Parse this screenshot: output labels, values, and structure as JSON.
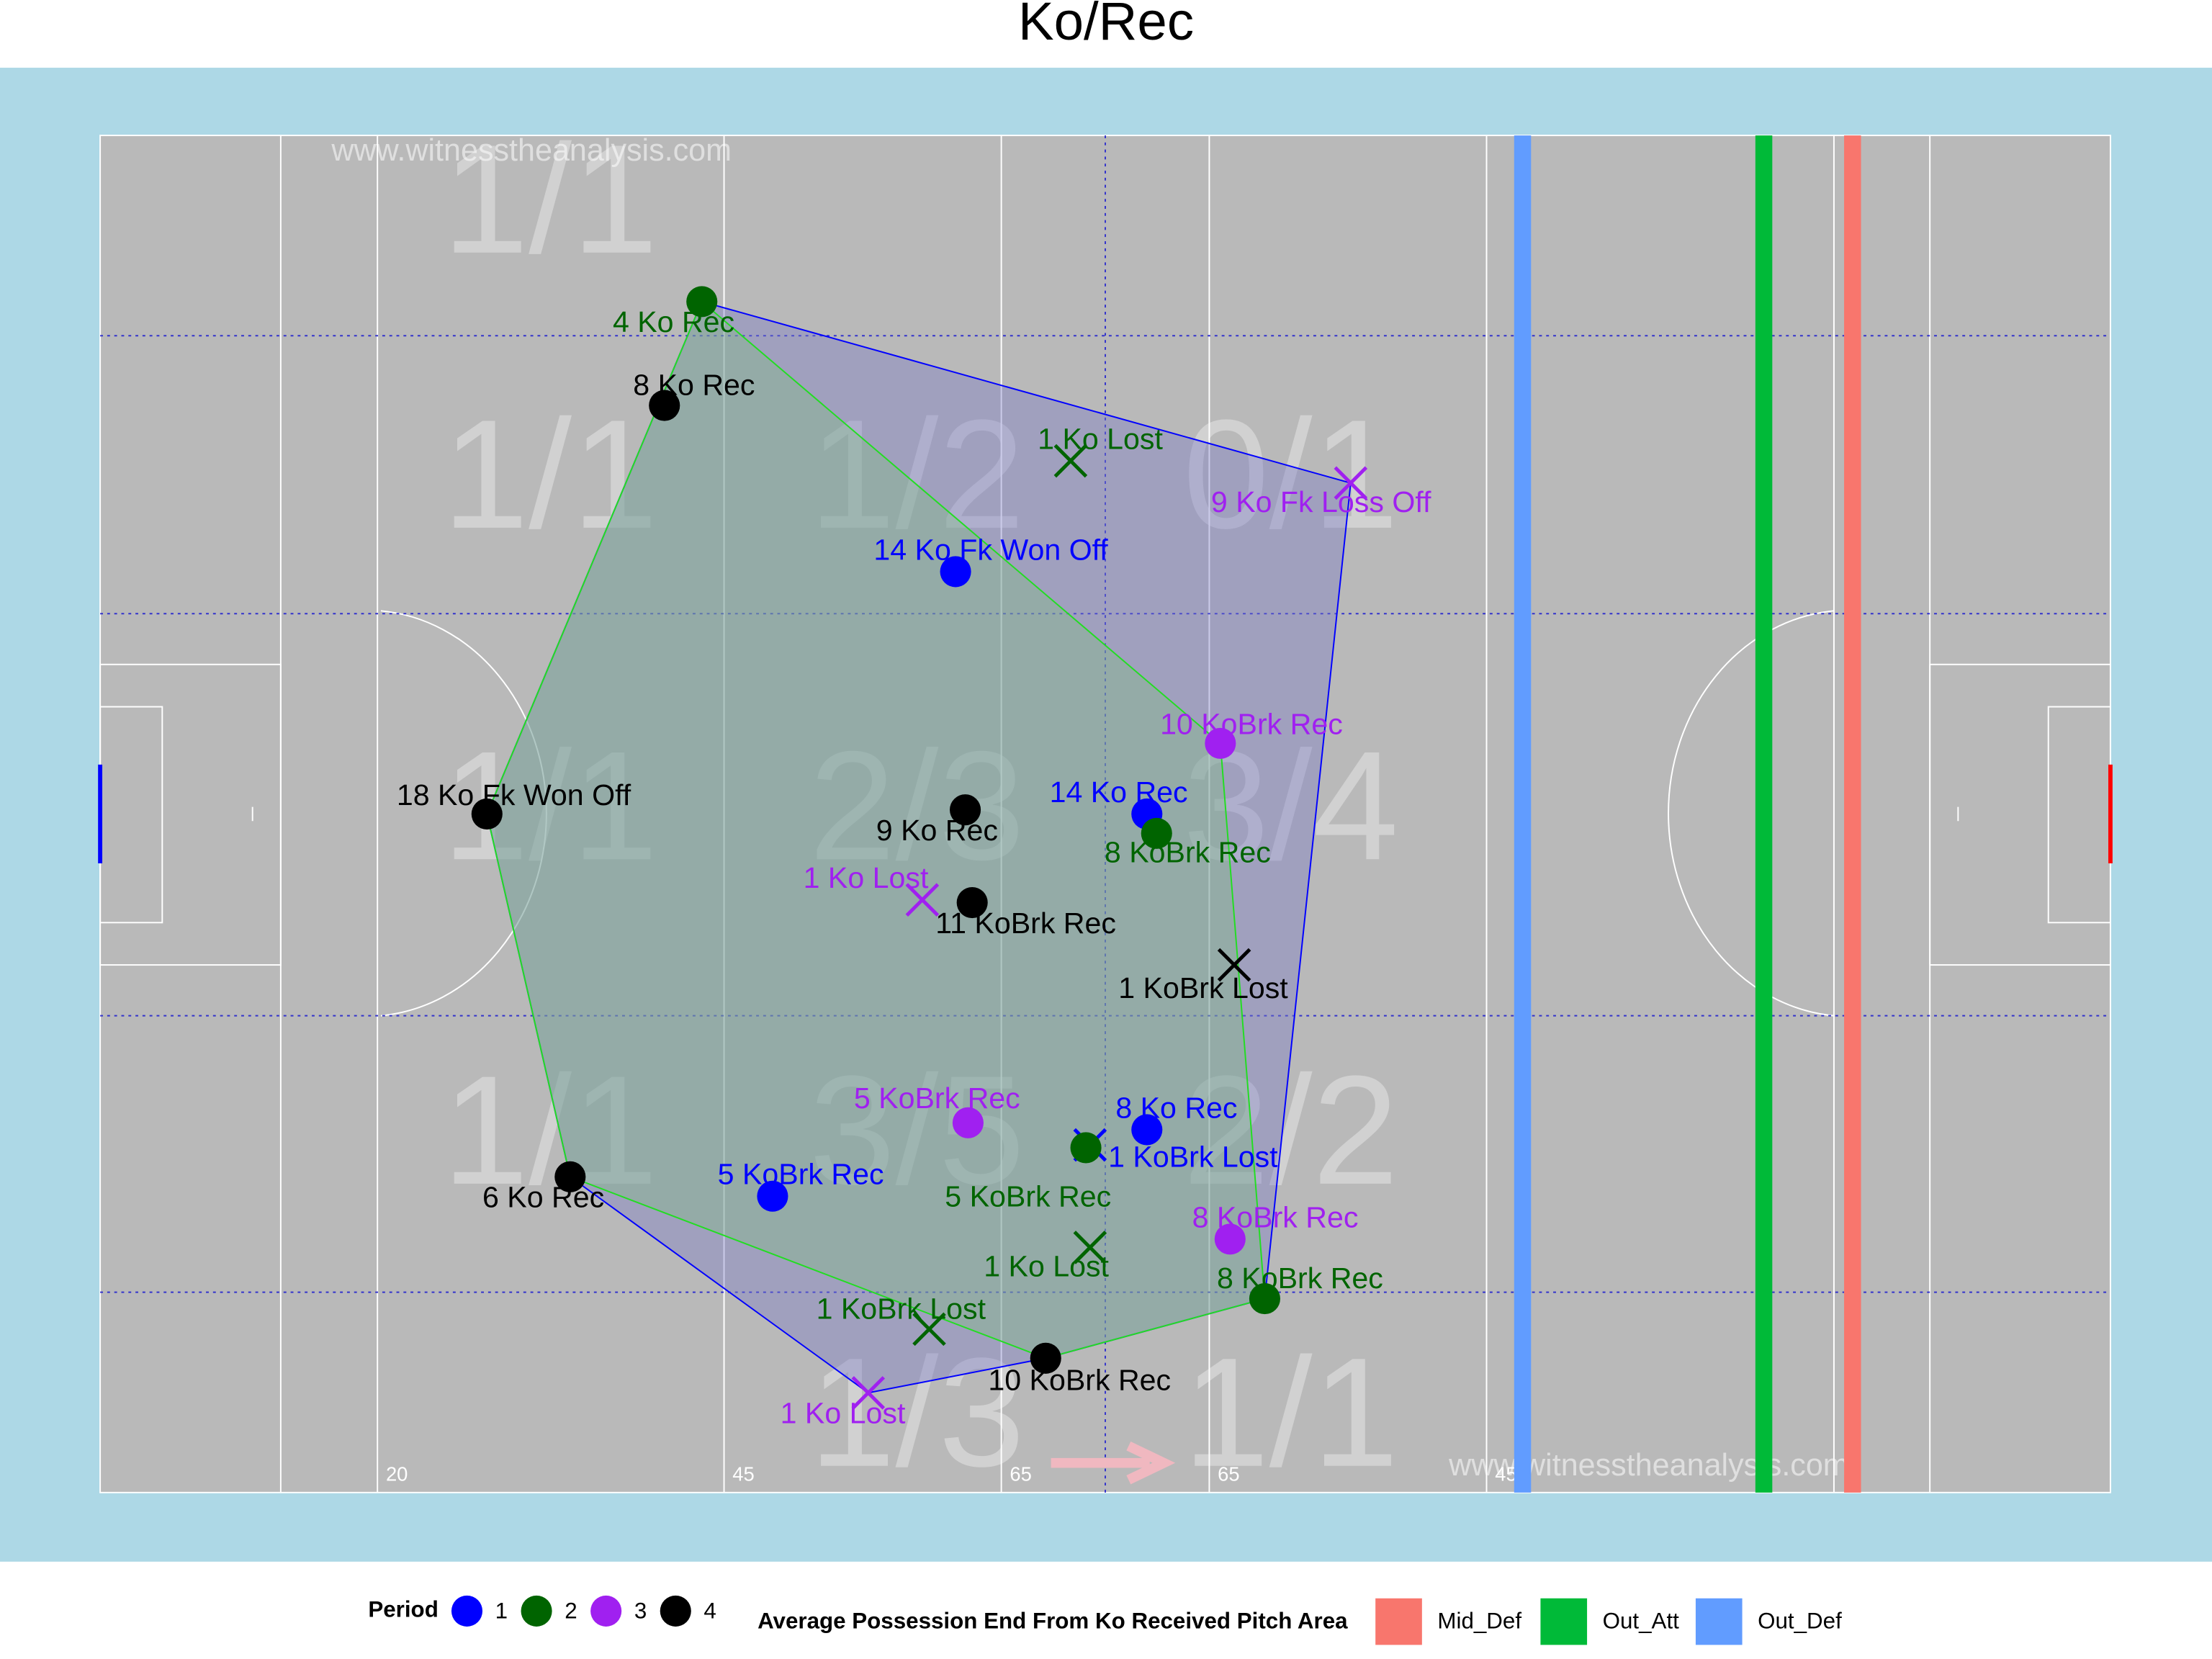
{
  "chart_data": {
    "type": "scatter",
    "title": "Ko/Rec",
    "watermark": "www.witnesstheanalysis.com",
    "xlim": [
      0,
      145
    ],
    "ylim": [
      0,
      98
    ],
    "pitch_markings": [
      20,
      45,
      65,
      65,
      45
    ],
    "zones": [
      [
        "1/1",
        null,
        null
      ],
      [
        "1/1",
        "1/2",
        "0/1"
      ],
      [
        "1/1",
        "2/3",
        "3/4"
      ],
      [
        "1/1",
        "3/5",
        "2/2"
      ],
      [
        null,
        "1/3",
        "1/1"
      ]
    ],
    "legend_title": "Period",
    "periods": [
      1,
      2,
      3,
      4
    ],
    "period_colors": [
      "#0000ff",
      "#006400",
      "#a020f0",
      "#000000"
    ],
    "points": [
      {
        "label": "4 Ko Rec",
        "period": 2,
        "marker": "circle",
        "x": 43.4,
        "y": 86.0
      },
      {
        "label": "8 Ko Rec",
        "period": 4,
        "marker": "circle",
        "x": 40.7,
        "y": 78.5
      },
      {
        "label": "1 Ko Lost",
        "period": 2,
        "marker": "x",
        "x": 70.0,
        "y": 74.5
      },
      {
        "label": "9 Ko Fk Loss Off",
        "period": 3,
        "marker": "x",
        "x": 90.2,
        "y": 72.9
      },
      {
        "label": "14 Ko Fk Won Off",
        "period": 1,
        "marker": "circle",
        "x": 61.7,
        "y": 66.5
      },
      {
        "label": "10 KoBrk Rec",
        "period": 3,
        "marker": "circle",
        "x": 80.8,
        "y": 54.1
      },
      {
        "label": "18 Ko Fk Won Off",
        "period": 4,
        "marker": "circle",
        "x": 27.9,
        "y": 49.0
      },
      {
        "label": "9 Ko Rec",
        "period": 4,
        "marker": "circle",
        "x": 62.4,
        "y": 49.3
      },
      {
        "label": "14 Ko Rec",
        "period": 1,
        "marker": "circle",
        "x": 75.5,
        "y": 49.0
      },
      {
        "label": "8 KoBrk Rec",
        "period": 2,
        "marker": "circle",
        "x": 76.2,
        "y": 47.6
      },
      {
        "label": "1 Ko Lost",
        "period": 3,
        "marker": "x",
        "x": 59.3,
        "y": 42.8
      },
      {
        "label": "11 KoBrk Rec",
        "period": 4,
        "marker": "circle",
        "x": 62.9,
        "y": 42.6
      },
      {
        "label": "1 KoBrk Lost",
        "period": 4,
        "marker": "x",
        "x": 81.8,
        "y": 38.1
      },
      {
        "label": "5 KoBrk Rec",
        "period": 3,
        "marker": "circle",
        "x": 62.6,
        "y": 26.7
      },
      {
        "label": "8 Ko Rec",
        "period": 1,
        "marker": "circle",
        "x": 75.5,
        "y": 26.2
      },
      {
        "label": "1 KoBrk Lost",
        "period": 1,
        "marker": "x",
        "x": 71.4,
        "y": 25.1
      },
      {
        "label": "5 KoBrk Rec",
        "period": 2,
        "marker": "circle",
        "x": 71.1,
        "y": 24.9
      },
      {
        "label": "6 Ko Rec",
        "period": 4,
        "marker": "circle",
        "x": 33.9,
        "y": 22.8
      },
      {
        "label": "5 KoBrk Rec",
        "period": 1,
        "marker": "circle",
        "x": 48.5,
        "y": 21.4
      },
      {
        "label": "8 KoBrk Rec",
        "period": 3,
        "marker": "circle",
        "x": 81.5,
        "y": 18.3
      },
      {
        "label": "1 Ko Lost",
        "period": 2,
        "marker": "x",
        "x": 71.4,
        "y": 17.7
      },
      {
        "label": "8 KoBrk Rec",
        "period": 2,
        "marker": "circle",
        "x": 84.0,
        "y": 14.0
      },
      {
        "label": "1 KoBrk Lost",
        "period": 2,
        "marker": "x",
        "x": 59.8,
        "y": 11.8
      },
      {
        "label": "10 KoBrk Rec",
        "period": 4,
        "marker": "circle",
        "x": 68.2,
        "y": 9.7
      },
      {
        "label": "1 Ko Lost",
        "period": 3,
        "marker": "x",
        "x": 55.4,
        "y": 7.2
      }
    ],
    "average_end": {
      "title": "Average Possession End From Ko Received Pitch Area",
      "series": [
        {
          "name": "Mid_Def",
          "color": "#f8766d",
          "x": 126.4
        },
        {
          "name": "Out_Att",
          "color": "#00ba38",
          "x": 120.0
        },
        {
          "name": "Out_Def",
          "color": "#619cff",
          "x": 102.6
        }
      ]
    }
  }
}
